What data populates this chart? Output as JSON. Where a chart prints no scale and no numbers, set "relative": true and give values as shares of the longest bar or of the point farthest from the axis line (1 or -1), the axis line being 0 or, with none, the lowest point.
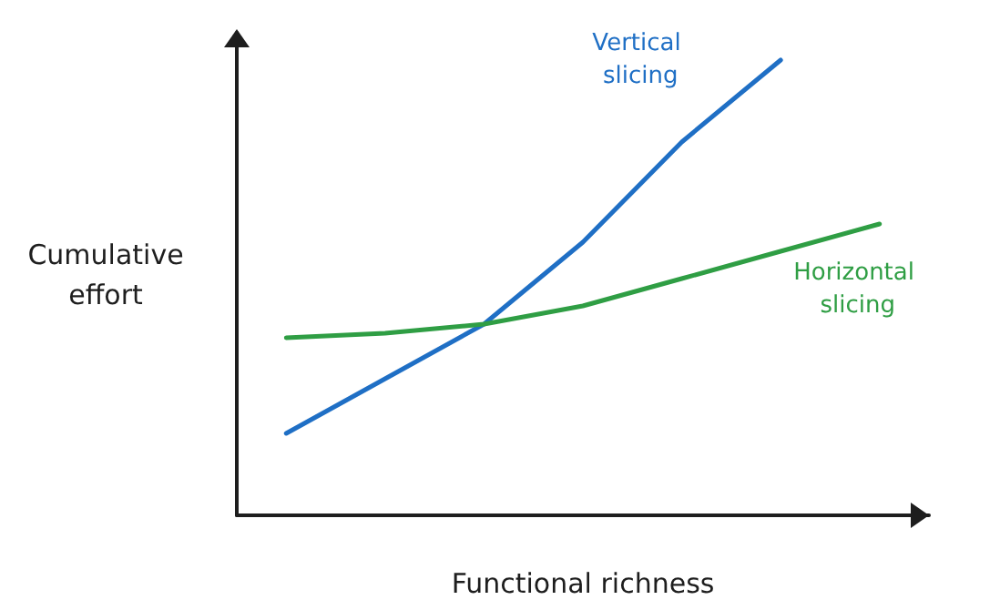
{
  "chart_data": {
    "type": "line",
    "relative": true,
    "xlabel": "Functional richness",
    "ylabel": "Cumulative effort",
    "categories": [
      null,
      null,
      null,
      null,
      null,
      null,
      null
    ],
    "series": [
      {
        "name": "Vertical slicing",
        "color": "#1f6fc5",
        "values": [
          0.18,
          0.3,
          0.42,
          0.6,
          0.82,
          1.0,
          null
        ]
      },
      {
        "name": "Horizontal slicing",
        "color": "#2f9e44",
        "values": [
          0.39,
          0.4,
          0.42,
          0.46,
          0.52,
          0.58,
          0.64
        ]
      }
    ],
    "grid": false,
    "legend": false,
    "marker": "none",
    "line_style": "solid"
  }
}
